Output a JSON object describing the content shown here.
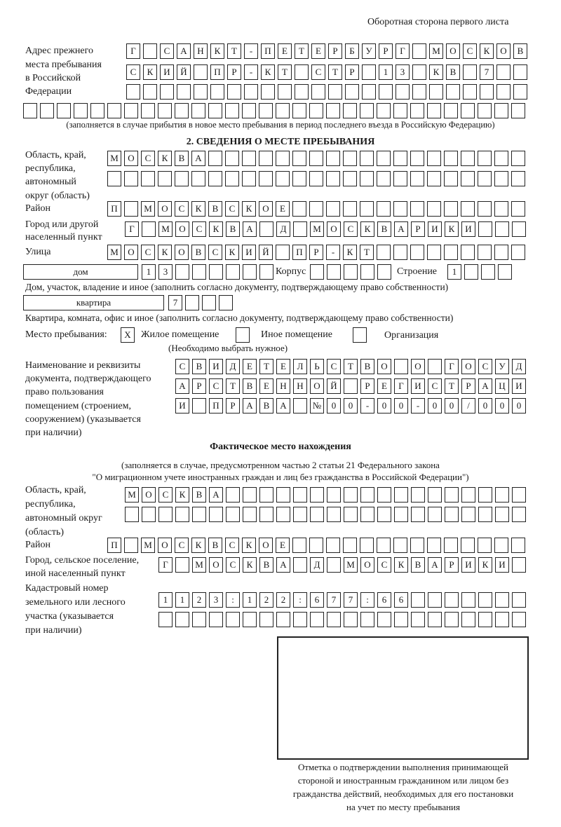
{
  "header": {
    "page_side": "Оборотная сторона первого листа"
  },
  "previous_address": {
    "label": [
      "Адрес прежнего",
      "места пребывания",
      "в Российской",
      "Федерации"
    ],
    "rows": [
      "Г САНКТ-ПЕТЕРБУРГ МОСКОВ",
      "СКИЙ ПР-КТ СТР 13 КВ 7",
      "",
      ""
    ],
    "note": "(заполняется в случае прибытия в новое место пребывания в период последнего въезда в Российскую Федерацию)"
  },
  "section2": {
    "title": "2. СВЕДЕНИЯ О МЕСТЕ ПРЕБЫВАНИЯ",
    "region_label": [
      "Область, край,",
      "республика,",
      "автономный",
      "округ (область)"
    ],
    "region_rows": [
      "МОСКВА",
      ""
    ],
    "district_label": "Район",
    "district": "П МОСКВСКОЕ",
    "city_label": [
      "Город или другой",
      "населенный пункт"
    ],
    "city": "Г МОСКВА Д МОСКВАРИКИ",
    "street_label": "Улица",
    "street": "МОСКОВСКИЙ ПР-КТ",
    "house_type": "дом",
    "house_number": "13",
    "korpus_label": "Корпус",
    "korpus": "",
    "building_label": "Строение",
    "building": "1",
    "house_note": "Дом, участок, владение и иное (заполнить согласно документу, подтверждающему право собственности)",
    "apartment_type": "квартира",
    "apartment_number": "7",
    "apartment_note": "Квартира, комната, офис и иное (заполнить согласно документу, подтверждающему право собственности)",
    "stay_place_label": "Место пребывания:",
    "stay_options": [
      {
        "label": "Жилое помещение",
        "mark": "Х",
        "checked": true
      },
      {
        "label": "Иное помещение",
        "mark": "",
        "checked": false
      },
      {
        "label": "Организация",
        "mark": "",
        "checked": false
      }
    ],
    "stay_note": "(Необходимо выбрать нужное)",
    "document_label": [
      "Наименование и реквизиты",
      "документа, подтверждающего",
      "право пользования",
      "помещением (строением,",
      "сооружением) (указывается",
      "при наличии)"
    ],
    "document_rows": [
      "СВИДЕТЕЛЬСТВО О ГОСУД",
      "АРСТВЕННОЙ РЕГИСТРАЦИ",
      "И ПРАВА №00-00-00/000"
    ]
  },
  "actual_location": {
    "title": "Фактическое место нахождения",
    "note_line1": "(заполняется в случае, предусмотренном частью 2 статьи 21 Федерального закона",
    "note_line2": "\"О миграционном учете иностранных граждан и лиц без гражданства в Российской Федерации\")",
    "region_label": [
      "Область, край,",
      "республика,",
      "автономный округ",
      "(область)"
    ],
    "region_rows": [
      "МОСКВА",
      ""
    ],
    "district_label": "Район",
    "district": "П МОСКВСКОЕ",
    "city_label": [
      "Город, сельское поселение,",
      "иной населенный пункт"
    ],
    "city": "Г МОСКВА Д МОСКВАРИКИ",
    "cadastral_label": [
      "Кадастровый номер",
      "земельного или лесного",
      "участка (указывается",
      "при наличии)"
    ],
    "cadastral_rows": [
      "1123:122:677:66",
      ""
    ]
  },
  "confirmation": {
    "caption": [
      "Отметка о подтверждении выполнения принимающей",
      "стороной и иностранным гражданином или лицом без",
      "гражданства действий, необходимых для его постановки",
      "на учет по месту пребывания"
    ]
  }
}
